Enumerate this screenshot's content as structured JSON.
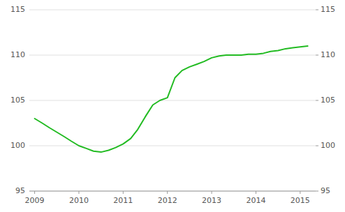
{
  "chart_data": {
    "type": "line",
    "x": [
      2009.0,
      2009.17,
      2009.33,
      2009.5,
      2009.67,
      2009.83,
      2010.0,
      2010.17,
      2010.33,
      2010.5,
      2010.67,
      2010.83,
      2011.0,
      2011.17,
      2011.33,
      2011.5,
      2011.67,
      2011.83,
      2012.0,
      2012.17,
      2012.33,
      2012.5,
      2012.67,
      2012.83,
      2013.0,
      2013.17,
      2013.33,
      2013.5,
      2013.67,
      2013.83,
      2014.0,
      2014.17,
      2014.33,
      2014.5,
      2014.67,
      2014.83,
      2015.0,
      2015.17
    ],
    "values": [
      103.0,
      102.5,
      102.0,
      101.5,
      101.0,
      100.5,
      100.0,
      99.7,
      99.4,
      99.3,
      99.5,
      99.8,
      100.2,
      100.8,
      101.8,
      103.2,
      104.5,
      105.0,
      105.3,
      107.5,
      108.3,
      108.7,
      109.0,
      109.3,
      109.7,
      109.9,
      110.0,
      110.0,
      110.0,
      110.1,
      110.1,
      110.2,
      110.4,
      110.5,
      110.7,
      110.8,
      110.9,
      111.0
    ],
    "color": "#22bb22",
    "xlim": [
      2008.88,
      2015.35
    ],
    "xticks": [
      2009,
      2010,
      2011,
      2012,
      2013,
      2014,
      2015
    ],
    "ylim": [
      95,
      115
    ],
    "yticks": [
      95,
      100,
      105,
      110,
      115
    ],
    "y2lim": [
      95,
      115
    ],
    "y2ticks": [
      95,
      100,
      105,
      110,
      115
    ],
    "grid": true
  }
}
